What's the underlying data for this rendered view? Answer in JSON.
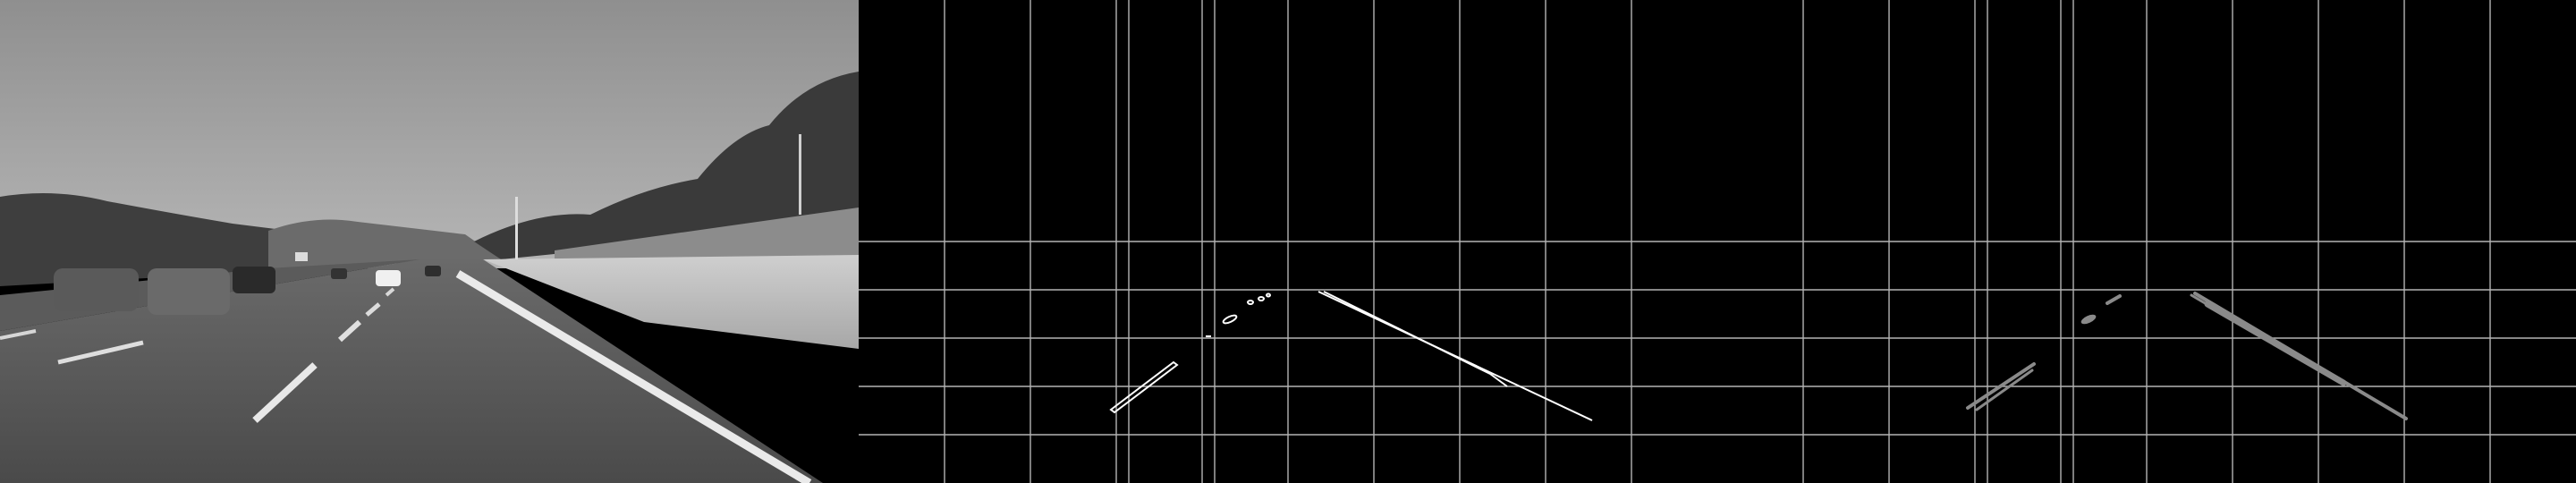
{
  "image": {
    "panels": [
      {
        "name": "grayscale-road-photo"
      },
      {
        "name": "canny-edges-with-grid"
      },
      {
        "name": "hough-lines-with-grid"
      }
    ],
    "colors": {
      "background": "#000000",
      "grid": "#b4b4b4",
      "edges": "#ffffff",
      "hough": "#8a8a8a",
      "sky": "#a9a9a9",
      "road": "#555555"
    }
  }
}
